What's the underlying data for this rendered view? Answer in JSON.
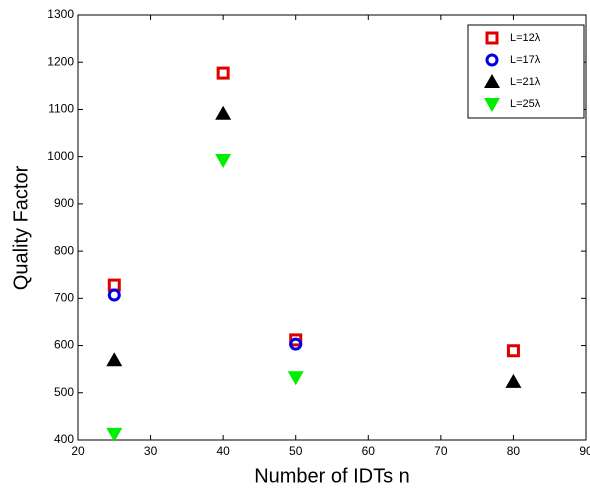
{
  "chart_data": {
    "type": "scatter",
    "xlabel": "Number of IDTs n",
    "ylabel": "Quality Factor",
    "xlim": [
      20,
      90
    ],
    "xticks": [
      20,
      30,
      40,
      50,
      60,
      70,
      80,
      90
    ],
    "ylim": [
      400,
      1300
    ],
    "yticks": [
      400,
      500,
      600,
      700,
      800,
      900,
      1000,
      1100,
      1200,
      1300
    ],
    "legend": "upper right",
    "series": [
      {
        "name": "L=12λ",
        "color": "#e00000",
        "marker": "square",
        "x": [
          25,
          40,
          50,
          80
        ],
        "values": [
          728,
          1177,
          612,
          589
        ]
      },
      {
        "name": "L=17λ",
        "color": "#0000e0",
        "marker": "circle",
        "x": [
          25,
          50
        ],
        "values": [
          707,
          603
        ]
      },
      {
        "name": "L=21λ",
        "color": "#000000",
        "marker": "triangle-up",
        "x": [
          25,
          40,
          80
        ],
        "values": [
          569,
          1091,
          523
        ]
      },
      {
        "name": "L=25λ",
        "color": "#00ee00",
        "marker": "triangle-down",
        "x": [
          25,
          40,
          50
        ],
        "values": [
          413,
          993,
          533
        ]
      }
    ]
  }
}
